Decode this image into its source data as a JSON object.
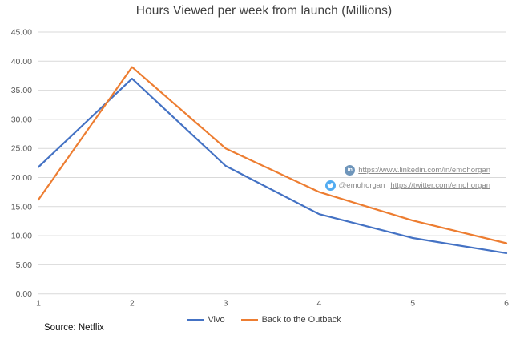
{
  "chart_data": {
    "type": "line",
    "title": "Hours Viewed per week from launch (Millions)",
    "x": [
      1,
      2,
      3,
      4,
      5,
      6
    ],
    "x_tick_labels": [
      "1",
      "2",
      "3",
      "4",
      "5",
      "6"
    ],
    "series": [
      {
        "name": "Vivo",
        "color": "#4472C4",
        "values": [
          21.8,
          37.0,
          22.0,
          13.7,
          9.6,
          7.0
        ]
      },
      {
        "name": "Back to the Outback",
        "color": "#ED7D31",
        "values": [
          16.2,
          39.0,
          25.0,
          17.5,
          12.6,
          8.7
        ]
      }
    ],
    "ylim": [
      0,
      45
    ],
    "y_tick_step": 5,
    "y_tick_labels": [
      "0.00",
      "5.00",
      "10.00",
      "15.00",
      "20.00",
      "25.00",
      "30.00",
      "35.00",
      "40.00",
      "45.00"
    ],
    "grid": true,
    "gridline_color": "#D9D9D9",
    "axis_label_color": "#595959",
    "legend_position": "bottom"
  },
  "annotations": {
    "linkedin": {
      "icon": "linkedin-icon",
      "url": "https://www.linkedin.com/in/emohorgan"
    },
    "twitter": {
      "icon": "twitter-icon",
      "handle": "@emohorgan",
      "url": "https://twitter.com/emohorgan"
    }
  },
  "source_note": "Source:  Netflix"
}
